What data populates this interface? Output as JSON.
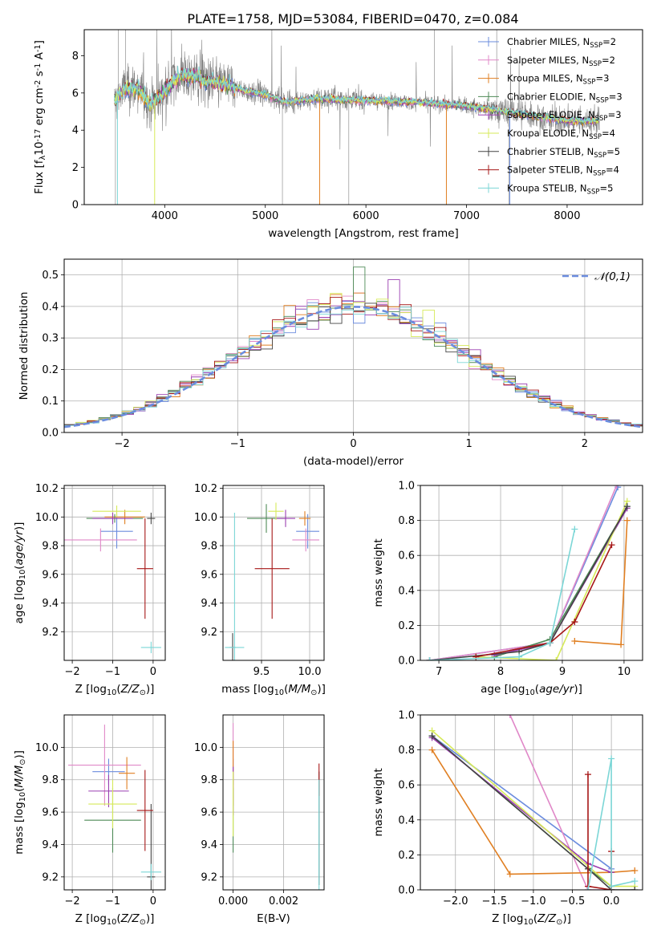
{
  "colors": [
    "#6b8cde",
    "#e088c8",
    "#e07f22",
    "#4e8a57",
    "#9a3fb0",
    "#d6ea5a",
    "#444444",
    "#a61717",
    "#7bd6d6"
  ],
  "chart_data": [
    {
      "type": "line",
      "title": "PLATE=1758, MJD=53084, FIBERID=0470, z=0.084",
      "xlabel": "wavelength [Angstrom, rest frame]",
      "ylabel": "Flux [f$_\\lambda$10$^{-17}$ erg cm$^{-2}$ s$^{-1}$ A$^{-1}$]",
      "xlim": [
        3200,
        8750
      ],
      "ylim": [
        0,
        9.4
      ],
      "xticks": [
        "4000",
        "5000",
        "6000",
        "7000",
        "8000"
      ],
      "yticks": [
        "0",
        "2",
        "4",
        "6",
        "8"
      ],
      "legend_position": "upper right",
      "legend": [
        {
          "label": "Chabrier MILES, N",
          "sub": "SSP",
          "val": "=2"
        },
        {
          "label": "Salpeter MILES, N",
          "sub": "SSP",
          "val": "=2"
        },
        {
          "label": "Kroupa MILES, N",
          "sub": "SSP",
          "val": "=3"
        },
        {
          "label": "Chabrier ELODIE, N",
          "sub": "SSP",
          "val": "=3"
        },
        {
          "label": "Salpeter ELODIE, N",
          "sub": "SSP",
          "val": "=3"
        },
        {
          "label": "Kroupa ELODIE, N",
          "sub": "SSP",
          "val": "=4"
        },
        {
          "label": "Chabrier STELIB, N",
          "sub": "SSP",
          "val": "=5"
        },
        {
          "label": "Salpeter STELIB, N",
          "sub": "SSP",
          "val": "=4"
        },
        {
          "label": "Kroupa STELIB, N",
          "sub": "SSP",
          "val": "=5"
        }
      ],
      "model_continuum": [
        [
          3500,
          5.5
        ],
        [
          3560,
          6.0
        ],
        [
          3650,
          6.3
        ],
        [
          3750,
          6.2
        ],
        [
          3850,
          5.4
        ],
        [
          3950,
          5.8
        ],
        [
          4050,
          6.4
        ],
        [
          4150,
          6.9
        ],
        [
          4300,
          6.9
        ],
        [
          4400,
          6.6
        ],
        [
          4600,
          6.5
        ],
        [
          4800,
          6.1
        ],
        [
          5000,
          5.9
        ],
        [
          5200,
          5.5
        ],
        [
          5500,
          5.7
        ],
        [
          6000,
          5.6
        ],
        [
          6500,
          5.5
        ],
        [
          7000,
          5.3
        ],
        [
          7500,
          4.9
        ],
        [
          8000,
          4.5
        ],
        [
          8300,
          4.5
        ]
      ],
      "observed_note": "noisy gray observed spectrum"
    },
    {
      "type": "step",
      "xlabel": "(data-model)/error",
      "ylabel": "Normed distribution",
      "xlim": [
        -2.5,
        2.5
      ],
      "ylim": [
        0,
        0.55
      ],
      "xticks": [
        "−2",
        "−1",
        "0",
        "1",
        "2"
      ],
      "yticks": [
        "0.0",
        "0.1",
        "0.2",
        "0.3",
        "0.4",
        "0.5"
      ],
      "legend": "$\\mathcal{N}(0,1)$",
      "bin_width": 0.1
    },
    {
      "type": "scatter",
      "xlabel": "Z [log$_{10}$($Z/Z_\\odot$)]",
      "ylabel": "age  [log$_{10}$($age/yr$)]",
      "xlim": [
        -2.2,
        0.3
      ],
      "ylim": [
        9.0,
        10.22
      ],
      "xticks": [
        "−2",
        "−1",
        "0"
      ],
      "yticks": [
        "9.2",
        "9.4",
        "9.6",
        "9.8",
        "10.0",
        "10.2"
      ],
      "points": [
        {
          "c": 0,
          "x": -0.9,
          "y": 9.9,
          "ex": 0.4,
          "ey": 0.12
        },
        {
          "c": 1,
          "x": -1.3,
          "y": 9.84,
          "ex": 0.9,
          "ey": 0.08
        },
        {
          "c": 2,
          "x": -0.7,
          "y": 10.0,
          "ex": 0.5,
          "ey": 0.05
        },
        {
          "c": 3,
          "x": -0.95,
          "y": 9.99,
          "ex": 0.7,
          "ey": 0.03
        },
        {
          "c": 4,
          "x": -1.0,
          "y": 9.99,
          "ex": 0.5,
          "ey": 0.04
        },
        {
          "c": 5,
          "x": -0.9,
          "y": 10.04,
          "ex": 0.6,
          "ey": 0.04
        },
        {
          "c": 6,
          "x": -0.05,
          "y": 9.99,
          "ex": 0.1,
          "ey": 0.04
        },
        {
          "c": 7,
          "x": -0.2,
          "y": 9.64,
          "ex": 0.2,
          "ey": 0.35
        },
        {
          "c": 8,
          "x": -0.05,
          "y": 9.09,
          "ex": 0.25,
          "ey": 0.04
        }
      ]
    },
    {
      "type": "scatter",
      "xlabel": "mass [log$_{10}$($M/M_\\odot$)]",
      "ylabel": "",
      "xlim": [
        9.1,
        10.15
      ],
      "ylim": [
        9.0,
        10.22
      ],
      "xticks": [
        "9.5",
        "10.0"
      ],
      "yticks": [
        "9.2",
        "9.4",
        "9.6",
        "9.8",
        "10.0",
        "10.2"
      ],
      "points": [
        {
          "c": 0,
          "x": 9.98,
          "y": 9.9,
          "ex": 0.12,
          "ey": 0.12
        },
        {
          "c": 1,
          "x": 9.96,
          "y": 9.84,
          "ex": 0.14,
          "ey": 0.08
        },
        {
          "c": 2,
          "x": 9.95,
          "y": 9.99,
          "ex": 0.06,
          "ey": 0.05
        },
        {
          "c": 3,
          "x": 9.55,
          "y": 9.99,
          "ex": 0.2,
          "ey": 0.1
        },
        {
          "c": 4,
          "x": 9.75,
          "y": 9.99,
          "ex": 0.1,
          "ey": 0.06
        },
        {
          "c": 5,
          "x": 9.65,
          "y": 10.04,
          "ex": 0.08,
          "ey": 0.06
        },
        {
          "c": 6,
          "x": 9.2,
          "y": 9.09,
          "ex": 0.03,
          "ey": 0.1
        },
        {
          "c": 7,
          "x": 9.61,
          "y": 9.64,
          "ex": 0.18,
          "ey": 0.35
        },
        {
          "c": 8,
          "x": 9.22,
          "y": 9.09,
          "ex": 0.1,
          "ey": 0.94
        }
      ]
    },
    {
      "type": "line",
      "xlabel": "age  [log$_{10}$($age/yr$)]",
      "ylabel": "mass weight",
      "xlim": [
        6.7,
        10.3
      ],
      "ylim": [
        0,
        1.0
      ],
      "xticks": [
        "7",
        "8",
        "9",
        "10"
      ],
      "yticks": [
        "0.0",
        "0.2",
        "0.4",
        "0.6",
        "0.8",
        "1.0"
      ],
      "series": [
        {
          "c": 0,
          "x": [
            6.85,
            8.8,
            9.9
          ],
          "y": [
            0.0,
            0.1,
            0.99
          ]
        },
        {
          "c": 1,
          "x": [
            6.85,
            8.8,
            9.88
          ],
          "y": [
            0.0,
            0.1,
            1.0
          ]
        },
        {
          "c": 2,
          "x": [
            9.2,
            9.95,
            10.05
          ],
          "y": [
            0.11,
            0.09,
            0.8
          ]
        },
        {
          "c": 3,
          "x": [
            7.9,
            8.8,
            10.05
          ],
          "y": [
            0.02,
            0.12,
            0.88
          ]
        },
        {
          "c": 4,
          "x": [
            7.9,
            8.8,
            10.05
          ],
          "y": [
            0.03,
            0.1,
            0.87
          ]
        },
        {
          "c": 5,
          "x": [
            7.6,
            8.9,
            10.05
          ],
          "y": [
            0.02,
            0.0,
            0.91
          ]
        },
        {
          "c": 6,
          "x": [
            6.85,
            8.3,
            8.8,
            10.05
          ],
          "y": [
            0.0,
            0.05,
            0.1,
            0.88
          ]
        },
        {
          "c": 7,
          "x": [
            7.6,
            8.8,
            9.2,
            9.8
          ],
          "y": [
            0.02,
            0.1,
            0.22,
            0.66
          ]
        },
        {
          "c": 8,
          "x": [
            6.85,
            8.3,
            8.8,
            9.2
          ],
          "y": [
            0.0,
            0.02,
            0.1,
            0.75
          ]
        }
      ]
    },
    {
      "type": "scatter",
      "xlabel": "Z [log$_{10}$($Z/Z_\\odot$)]",
      "ylabel": "mass [log$_{10}$($M/M_\\odot$)]",
      "xlim": [
        -2.2,
        0.3
      ],
      "ylim": [
        9.12,
        10.2
      ],
      "xticks": [
        "−2",
        "−1",
        "0"
      ],
      "yticks": [
        "9.2",
        "9.4",
        "9.6",
        "9.8",
        "10.0"
      ],
      "points": [
        {
          "c": 0,
          "x": -1.1,
          "y": 9.85,
          "ex": 0.4,
          "ey": 0.08
        },
        {
          "c": 1,
          "x": -1.2,
          "y": 9.89,
          "ex": 0.9,
          "ey": 0.25
        },
        {
          "c": 2,
          "x": -0.65,
          "y": 9.84,
          "ex": 0.2,
          "ey": 0.1
        },
        {
          "c": 3,
          "x": -1.0,
          "y": 9.55,
          "ex": 0.7,
          "ey": 0.2
        },
        {
          "c": 4,
          "x": -1.1,
          "y": 9.73,
          "ex": 0.5,
          "ey": 0.1
        },
        {
          "c": 5,
          "x": -1.0,
          "y": 9.65,
          "ex": 0.6,
          "ey": 0.15
        },
        {
          "c": 6,
          "x": -0.05,
          "y": 9.2,
          "ex": 0.1,
          "ey": 0.45
        },
        {
          "c": 7,
          "x": -0.2,
          "y": 9.61,
          "ex": 0.2,
          "ey": 0.25
        },
        {
          "c": 8,
          "x": -0.05,
          "y": 9.23,
          "ex": 0.25,
          "ey": 0.05
        }
      ]
    },
    {
      "type": "scatter",
      "xlabel": "E(B-V)",
      "ylabel": "",
      "xlim": [
        -0.0004,
        0.0036
      ],
      "ylim": [
        9.12,
        10.2
      ],
      "xticks": [
        "0.000",
        "0.002"
      ],
      "yticks": [
        "9.2",
        "9.4",
        "9.6",
        "9.8",
        "10.0"
      ],
      "points": [
        {
          "c": 0,
          "x": 0.0,
          "y": 9.85,
          "ex": 0.0,
          "ey": 0.08
        },
        {
          "c": 1,
          "x": 0.0,
          "y": 9.95,
          "ex": 0.0,
          "ey": 0.2
        },
        {
          "c": 2,
          "x": 0.0,
          "y": 9.84,
          "ex": 0.0,
          "ey": 0.2
        },
        {
          "c": 3,
          "x": 0.0,
          "y": 9.55,
          "ex": 0.0,
          "ey": 0.2
        },
        {
          "c": 4,
          "x": 0.0,
          "y": 9.73,
          "ex": 0.0,
          "ey": 0.15
        },
        {
          "c": 5,
          "x": 0.0,
          "y": 9.65,
          "ex": 0.0,
          "ey": 0.2
        },
        {
          "c": 6,
          "x": 0.0034,
          "y": 9.5,
          "ex": 0.0,
          "ey": 0.35
        },
        {
          "c": 7,
          "x": 0.0034,
          "y": 9.8,
          "ex": 0.0,
          "ey": 0.1
        },
        {
          "c": 8,
          "x": 0.0034,
          "y": 9.45,
          "ex": 0.0,
          "ey": 0.35
        }
      ]
    },
    {
      "type": "line",
      "xlabel": "Z [log$_{10}$($Z/Z_\\odot$)]",
      "ylabel": "mass weight",
      "xlim": [
        -2.45,
        0.4
      ],
      "ylim": [
        0,
        1.0
      ],
      "xticks": [
        "−2.0",
        "−1.5",
        "−1.0",
        "−0.5",
        "0.0"
      ],
      "yticks": [
        "0.0",
        "0.2",
        "0.4",
        "0.6",
        "0.8",
        "1.0"
      ],
      "series": [
        {
          "c": 0,
          "x": [
            -2.3,
            0.0
          ],
          "y": [
            0.88,
            0.12
          ]
        },
        {
          "c": 1,
          "x": [
            -1.3,
            -0.3,
            0.0
          ],
          "y": [
            1.0,
            0.0,
            0.0
          ]
        },
        {
          "c": 2,
          "x": [
            -2.3,
            -1.3,
            0.0,
            0.3
          ],
          "y": [
            0.8,
            0.09,
            0.1,
            0.11
          ]
        },
        {
          "c": 3,
          "x": [
            -2.3,
            -0.3,
            0.0
          ],
          "y": [
            0.88,
            0.12,
            0.02
          ]
        },
        {
          "c": 4,
          "x": [
            -2.3,
            -0.3,
            0.0
          ],
          "y": [
            0.87,
            0.15,
            0.1
          ]
        },
        {
          "c": 5,
          "x": [
            -2.3,
            0.0,
            0.3
          ],
          "y": [
            0.91,
            0.02,
            0.02
          ]
        },
        {
          "c": 6,
          "x": [
            -2.3,
            -0.3,
            0.0,
            0.3
          ],
          "y": [
            0.88,
            0.12,
            0.0,
            0.0
          ]
        },
        {
          "c": 7,
          "x": [
            -0.3,
            -0.3,
            0.0,
            0.0
          ],
          "y": [
            0.66,
            0.02,
            0.0,
            0.22
          ]
        },
        {
          "c": 8,
          "x": [
            -0.3,
            0.0,
            0.0,
            0.3
          ],
          "y": [
            0.0,
            0.75,
            0.02,
            0.05
          ]
        }
      ]
    }
  ]
}
